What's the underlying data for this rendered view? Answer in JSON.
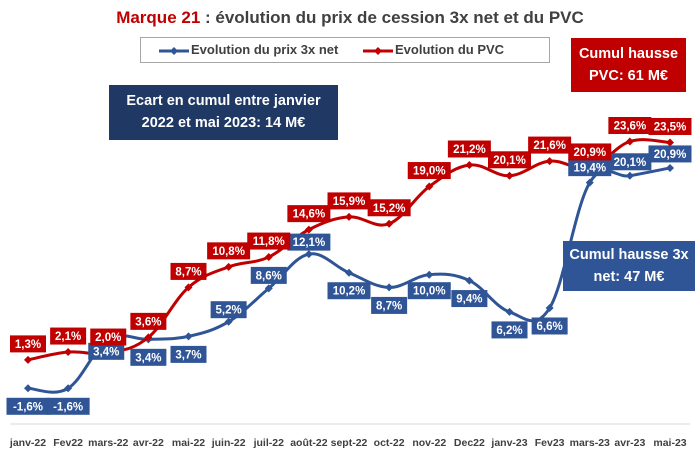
{
  "title": {
    "brand": "Marque 21",
    "rest": " : évolution du prix de cession 3x net et du PVC"
  },
  "legend": {
    "blue_label": "Evolution du prix 3x net",
    "red_label": "Evolution du PVC"
  },
  "callouts": {
    "ecart_line1": "Ecart en cumul entre janvier",
    "ecart_line2": "2022 et mai 2023: 14 M€",
    "pvc_line1": "Cumul hausse",
    "pvc_line2": "PVC: 61 M€",
    "net_line1": "Cumul hausse 3x",
    "net_line2": "net: 47 M€"
  },
  "colors": {
    "red": "#c00000",
    "blue": "#2f5597",
    "navy": "#1f3864",
    "text": "#404040"
  },
  "chart_data": {
    "type": "line",
    "categories": [
      "janv-22",
      "Fev22",
      "mars-22",
      "avr-22",
      "mai-22",
      "juin-22",
      "juil-22",
      "août-22",
      "sept-22",
      "oct-22",
      "nov-22",
      "Dec22",
      "janv-23",
      "Fev23",
      "mars-23",
      "avr-23",
      "mai-23"
    ],
    "ylim": [
      -3,
      26
    ],
    "grid": false,
    "legend_position": "top",
    "series": [
      {
        "name": "Evolution du prix 3x net",
        "color": "#2f5597",
        "values": [
          -1.6,
          -1.6,
          3.4,
          3.4,
          3.7,
          5.2,
          8.6,
          12.1,
          10.2,
          8.7,
          10.0,
          9.4,
          6.2,
          6.6,
          19.4,
          20.1,
          20.9
        ],
        "labels": [
          "-1,6%",
          "-1,6%",
          "3,4%",
          "3,4%",
          "3,7%",
          "5,2%",
          "8,6%",
          "12,1%",
          "10,2%",
          "8,7%",
          "10,0%",
          "9,4%",
          "6,2%",
          "6,6%",
          "19,4%",
          "20,1%",
          "20,9%"
        ]
      },
      {
        "name": "Evolution du PVC",
        "color": "#c00000",
        "values": [
          1.3,
          2.1,
          2.0,
          3.6,
          8.7,
          10.8,
          11.8,
          14.6,
          15.9,
          15.2,
          19.0,
          21.2,
          20.1,
          21.6,
          20.9,
          23.6,
          23.5
        ],
        "labels": [
          "1,3%",
          "2,1%",
          "2,0%",
          "3,6%",
          "8,7%",
          "10,8%",
          "11,8%",
          "14,6%",
          "15,9%",
          "15,2%",
          "19,0%",
          "21,2%",
          "20,1%",
          "21,6%",
          "20,9%",
          "23,6%",
          "23,5%"
        ]
      }
    ]
  }
}
